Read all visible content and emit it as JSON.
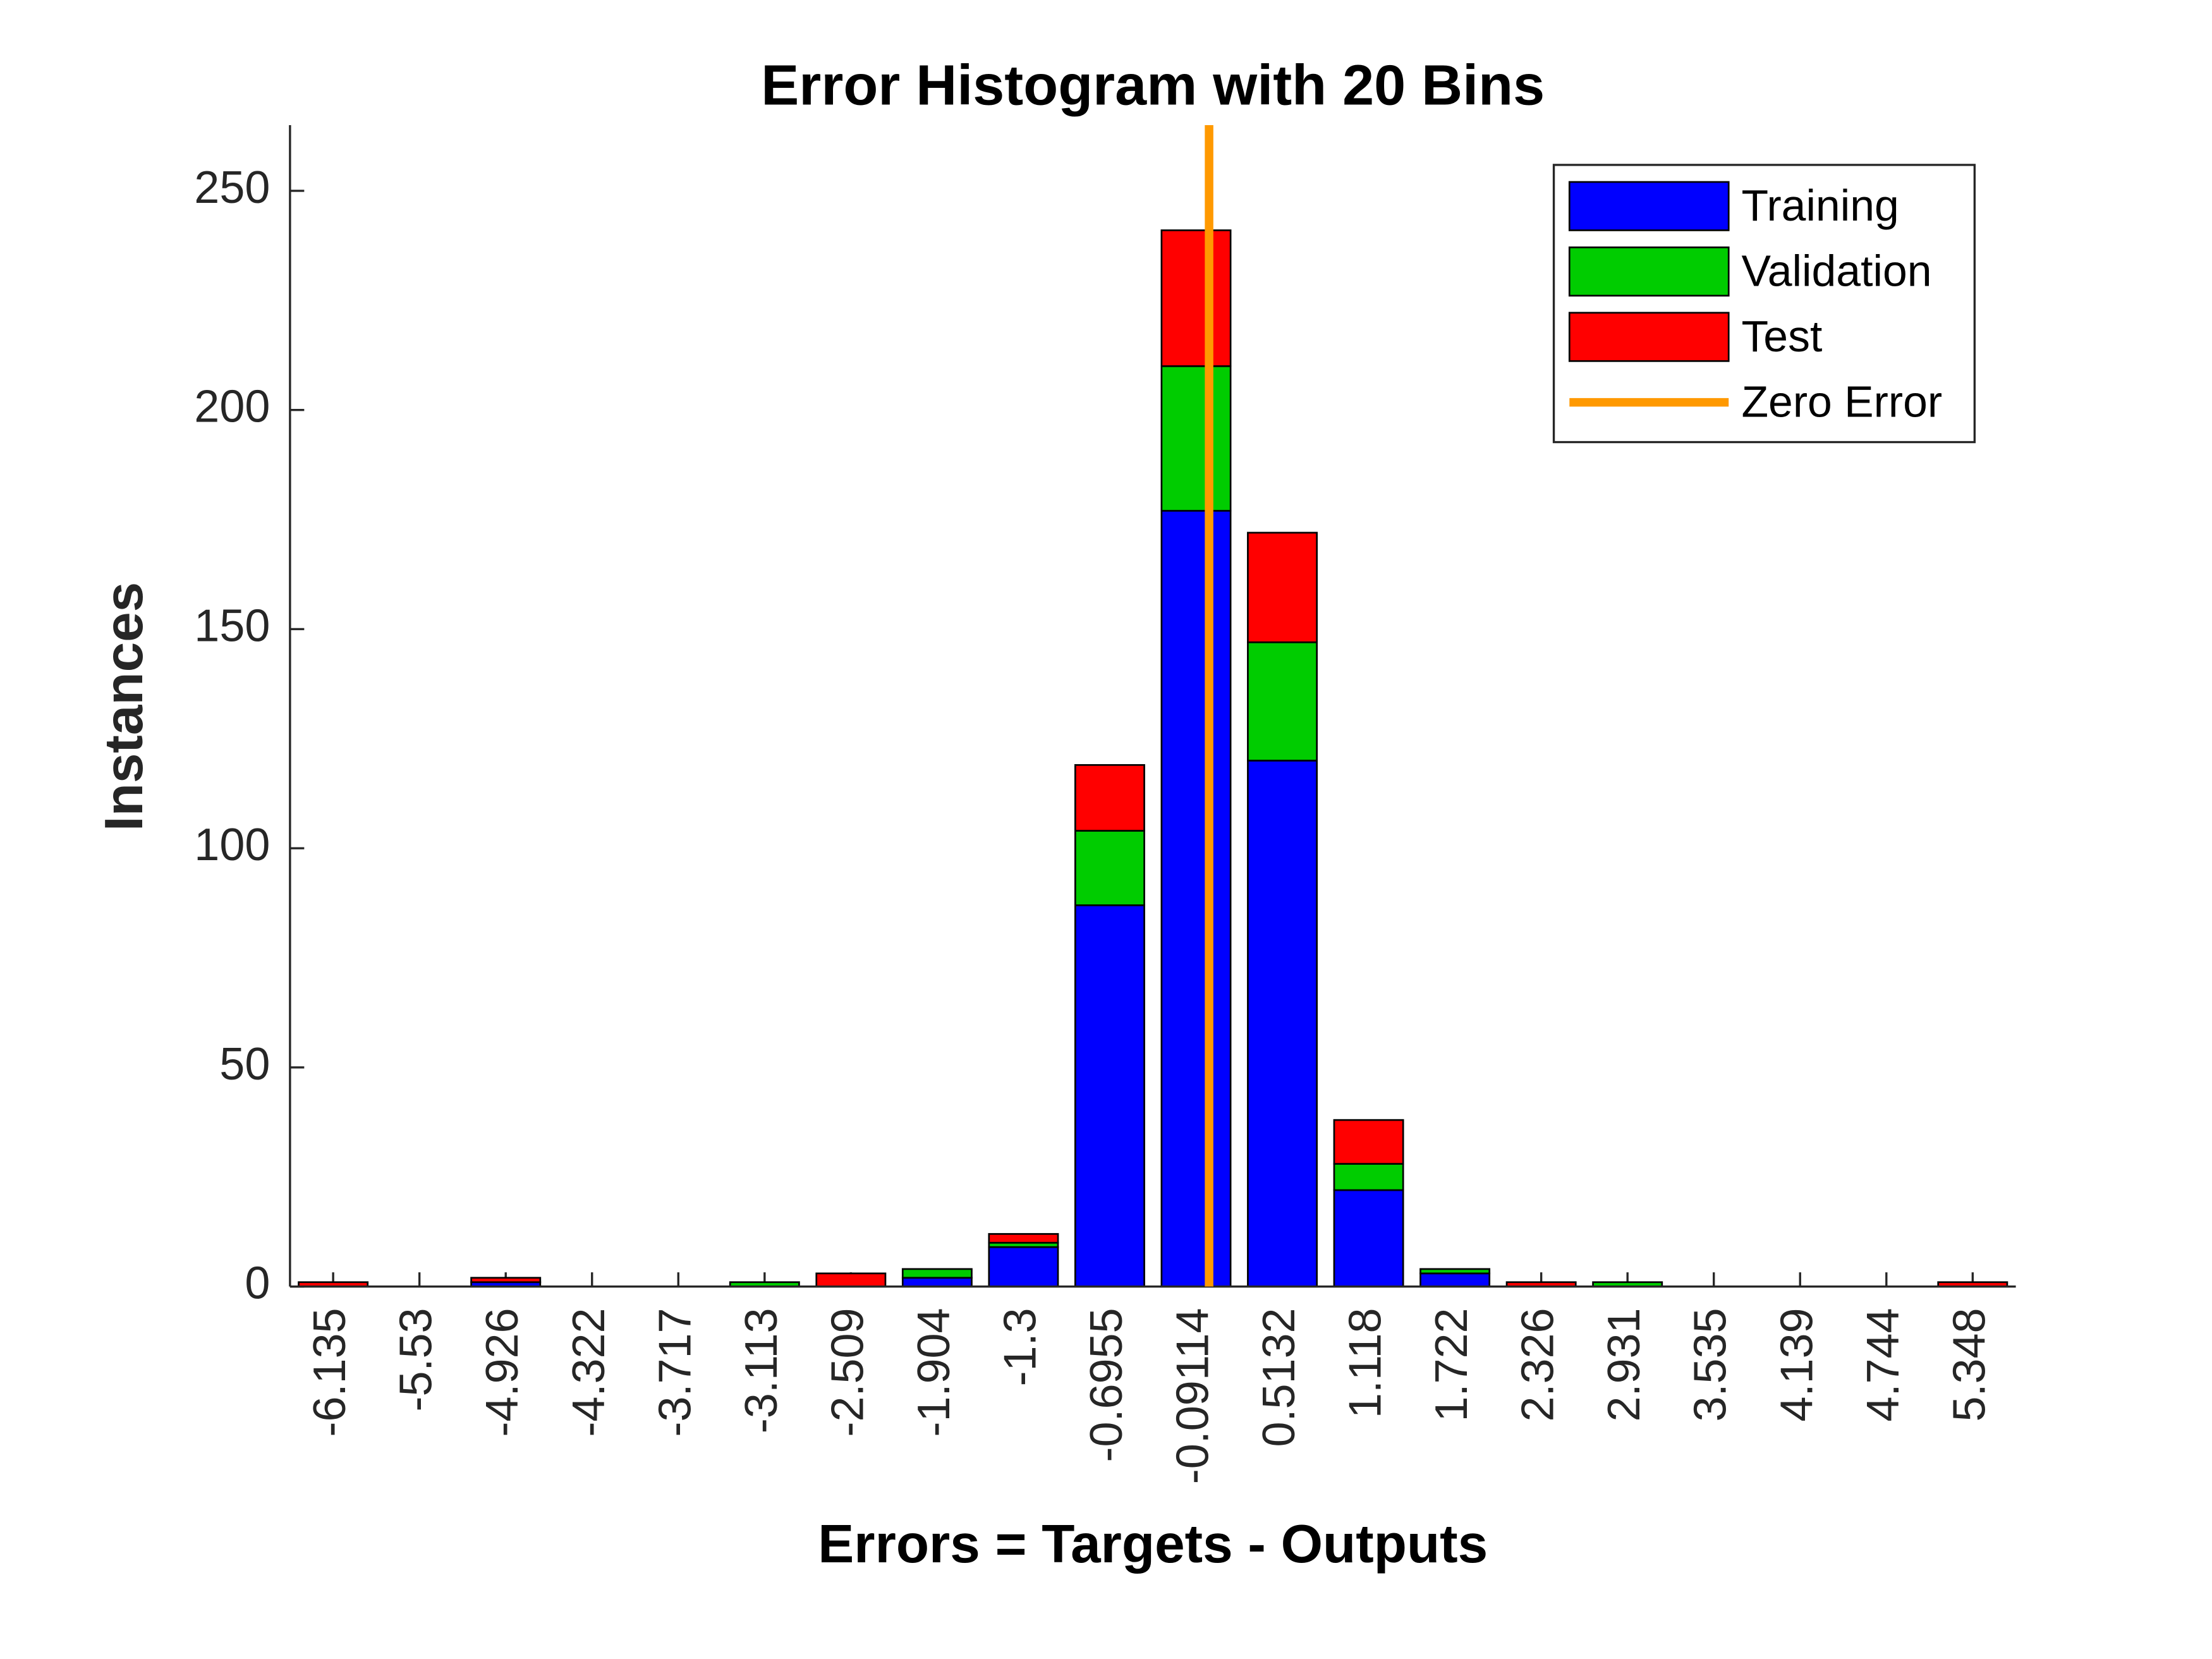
{
  "chart_data": {
    "type": "bar",
    "stacked": true,
    "title": "Error Histogram with 20 Bins",
    "x_label": "Errors = Targets - Outputs",
    "y_label": "Instances",
    "categories": [
      "-6.135",
      "-5.53",
      "-4.926",
      "-4.322",
      "-3.717",
      "-3.113",
      "-2.509",
      "-1.904",
      "-1.3",
      "-0.6955",
      "-0.09114",
      "0.5132",
      "1.118",
      "1.722",
      "2.326",
      "2.931",
      "3.535",
      "4.139",
      "4.744",
      "5.348"
    ],
    "series": [
      {
        "name": "Training",
        "color": "#0000ff",
        "values": [
          0,
          0,
          1,
          0,
          0,
          0,
          0,
          2,
          9,
          87,
          177,
          120,
          22,
          3,
          0,
          0,
          0,
          0,
          0,
          0
        ]
      },
      {
        "name": "Validation",
        "color": "#00cc00",
        "values": [
          0,
          0,
          0,
          0,
          0,
          1,
          0,
          2,
          1,
          17,
          33,
          27,
          6,
          1,
          0,
          1,
          0,
          0,
          0,
          0
        ]
      },
      {
        "name": "Test",
        "color": "#ff0000",
        "values": [
          1,
          0,
          1,
          0,
          0,
          0,
          3,
          0,
          2,
          15,
          31,
          25,
          10,
          0,
          1,
          0,
          0,
          0,
          0,
          1
        ]
      }
    ],
    "zero_line": {
      "name": "Zero Error",
      "color": "#ff9900",
      "value": 0
    },
    "ylim": [
      0,
      265
    ],
    "yticks": [
      0,
      50,
      100,
      150,
      200,
      250
    ],
    "legend": "upper right"
  }
}
